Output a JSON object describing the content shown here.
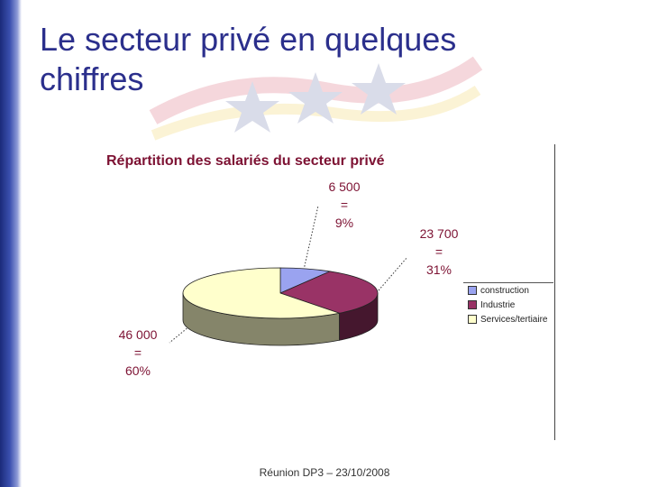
{
  "slide": {
    "title_line1": "Le secteur privé en quelques",
    "title_line2": "chiffres",
    "footer": "Réunion DP3 – 23/10/2008"
  },
  "colors": {
    "accent_title": "#2b2f8c",
    "chart_text": "#7d1233",
    "construction": "#9aa3f0",
    "industrie": "#993366",
    "services": "#ffffcc"
  },
  "chart_data": {
    "type": "pie",
    "title": "Répartition des salariés du secteur privé",
    "legend_placement": "right",
    "slices": [
      {
        "name": "construction",
        "value": 6500,
        "percent": 9,
        "label_value": "6 500",
        "label_eq": "=",
        "label_pct": "9%",
        "color": "#9aa3f0"
      },
      {
        "name": "Industrie",
        "value": 23700,
        "percent": 31,
        "label_value": "23 700",
        "label_eq": "=",
        "label_pct": "31%",
        "color": "#993366"
      },
      {
        "name": "Services/tertiaire",
        "value": 46000,
        "percent": 60,
        "label_value": "46 000",
        "label_eq": "=",
        "label_pct": "60%",
        "color": "#ffffcc"
      }
    ]
  }
}
